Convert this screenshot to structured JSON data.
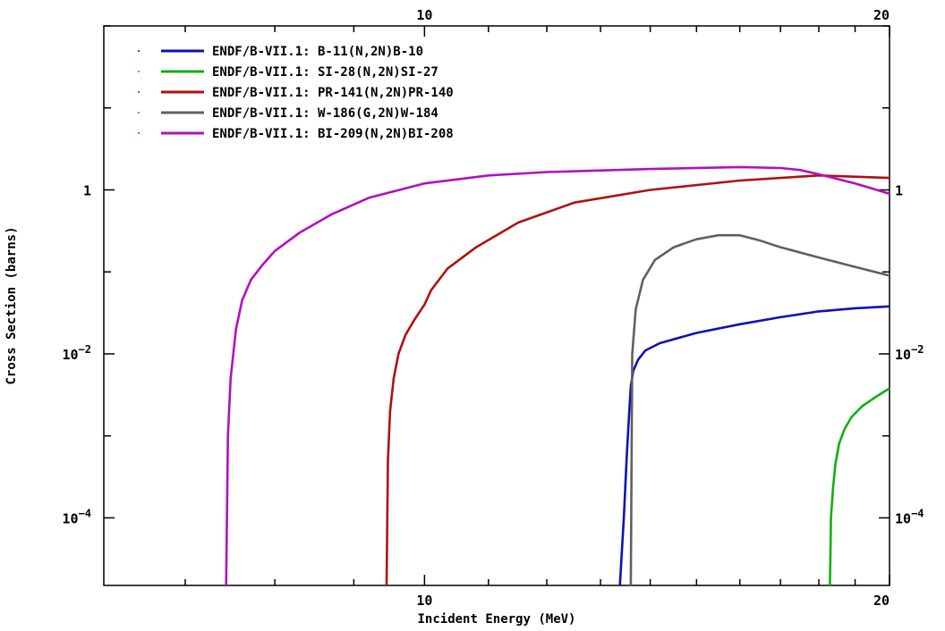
{
  "chart_data": {
    "type": "line",
    "title": "",
    "xlabel": "Incident Energy (MeV)",
    "ylabel": "Cross Section (barns)",
    "xscale": "log",
    "yscale": "log",
    "xlim": [
      6.2,
      20
    ],
    "ylim": [
      1.5e-05,
      100
    ],
    "grid": false,
    "legend_position": "top-left",
    "x_ticks": [
      {
        "value": 10,
        "label": "10"
      },
      {
        "value": 20,
        "label": "20"
      }
    ],
    "y_ticks": [
      {
        "value": 1,
        "base": "1",
        "exp": ""
      },
      {
        "value": 0.01,
        "base": "10",
        "exp": "−2"
      },
      {
        "value": 0.0001,
        "base": "10",
        "exp": "−4"
      }
    ],
    "series": [
      {
        "name": "ENDF/B-VII.1: B-11(N,2N)B-10",
        "color": "#1010b8",
        "x": [
          13.38,
          13.46,
          13.52,
          13.57,
          13.6,
          13.65,
          13.75,
          13.9,
          14.2,
          15.0,
          16.0,
          17.0,
          18.0,
          19.0,
          20.0
        ],
        "y": [
          1.5e-05,
          0.0001,
          0.0006,
          0.002,
          0.004,
          0.0062,
          0.0085,
          0.011,
          0.0135,
          0.018,
          0.023,
          0.028,
          0.033,
          0.036,
          0.038
        ]
      },
      {
        "name": "ENDF/B-VII.1: SI-28(N,2N)SI-27",
        "color": "#10b010",
        "x": [
          18.3,
          18.33,
          18.38,
          18.45,
          18.55,
          18.7,
          18.9,
          19.2,
          19.6,
          20.0
        ],
        "y": [
          1.5e-05,
          0.0001,
          0.00022,
          0.00045,
          0.0008,
          0.0012,
          0.0017,
          0.0023,
          0.003,
          0.0038
        ]
      },
      {
        "name": "ENDF/B-VII.1: PR-141(N,2N)PR-140",
        "color": "#b01010",
        "x": [
          9.45,
          9.47,
          9.5,
          9.55,
          9.62,
          9.72,
          9.85,
          10.0,
          10.1,
          10.35,
          10.8,
          11.5,
          12.5,
          14.0,
          16.0,
          18.0,
          20.0
        ],
        "y": [
          1.5e-05,
          0.0005,
          0.002,
          0.005,
          0.01,
          0.017,
          0.026,
          0.04,
          0.06,
          0.11,
          0.2,
          0.4,
          0.7,
          1.0,
          1.3,
          1.5,
          1.4
        ]
      },
      {
        "name": "ENDF/B-VII.1: W-186(G,2N)W-184",
        "color": "#606060",
        "x": [
          13.6,
          13.63,
          13.7,
          13.85,
          14.1,
          14.5,
          15.0,
          15.5,
          16.0,
          16.5,
          17.0,
          18.0,
          19.0,
          20.0
        ],
        "y": [
          1.5e-05,
          0.01,
          0.035,
          0.08,
          0.14,
          0.2,
          0.25,
          0.28,
          0.28,
          0.24,
          0.2,
          0.15,
          0.115,
          0.09
        ]
      },
      {
        "name": "ENDF/B-VII.1: BI-209(N,2N)BI-208",
        "color": "#b010c0",
        "x": [
          7.44,
          7.46,
          7.49,
          7.55,
          7.62,
          7.72,
          7.85,
          8.0,
          8.3,
          8.7,
          9.2,
          10.0,
          11.0,
          12.0,
          14.0,
          16.0,
          17.0,
          17.5,
          18.0,
          19.0,
          20.0
        ],
        "y": [
          1.5e-05,
          0.001,
          0.005,
          0.02,
          0.045,
          0.08,
          0.12,
          0.18,
          0.3,
          0.5,
          0.8,
          1.2,
          1.5,
          1.65,
          1.8,
          1.9,
          1.85,
          1.75,
          1.55,
          1.2,
          0.9
        ]
      }
    ]
  }
}
